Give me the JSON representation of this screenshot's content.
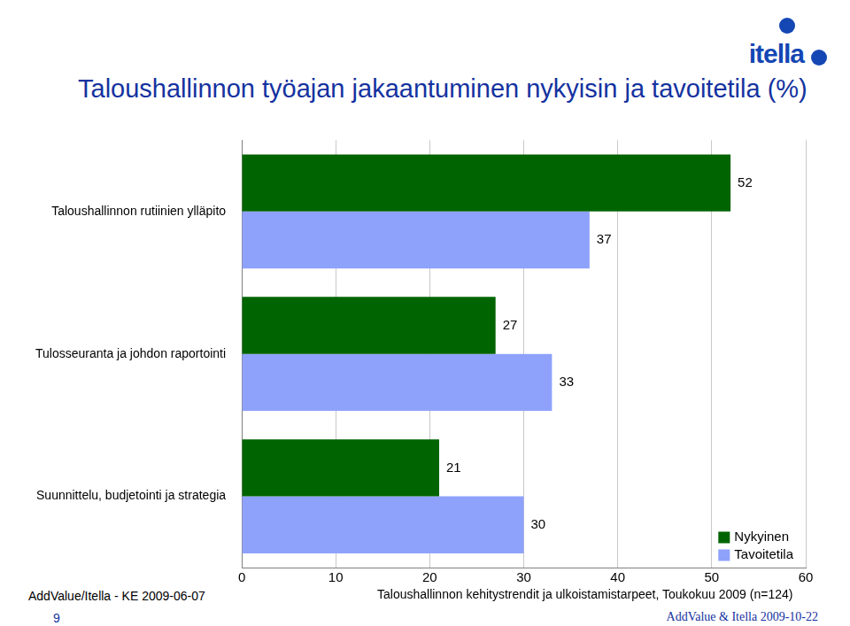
{
  "chart_data": {
    "type": "bar",
    "orientation": "horizontal",
    "title": "Taloushallinnon työajan jakaantuminen nykyisin ja tavoitetila (%)",
    "categories": [
      "Taloushallinnon rutiinien ylläpito",
      "Tulosseuranta ja johdon raportointi",
      "Suunnittelu, budjetointi ja strategia"
    ],
    "series": [
      {
        "name": "Nykyinen",
        "color": "#006400",
        "values": [
          52,
          27,
          21
        ]
      },
      {
        "name": "Tavoitetila",
        "color": "#8ea2fc",
        "values": [
          37,
          33,
          30
        ]
      }
    ],
    "xlim": [
      0,
      60
    ],
    "xticks": [
      0,
      10,
      20,
      30,
      40,
      50,
      60
    ],
    "grid": true,
    "legend": "lower-right",
    "data_labels": true,
    "annotations": [
      "itella",
      "AddValue/Itella - KE 2009-06-07",
      "Taloushallinnon kehitystrendit ja ulkoistamistarpeet, Toukokuu 2009 (n=124)",
      "9",
      "AddValue & Itella 2009-10-22"
    ]
  }
}
